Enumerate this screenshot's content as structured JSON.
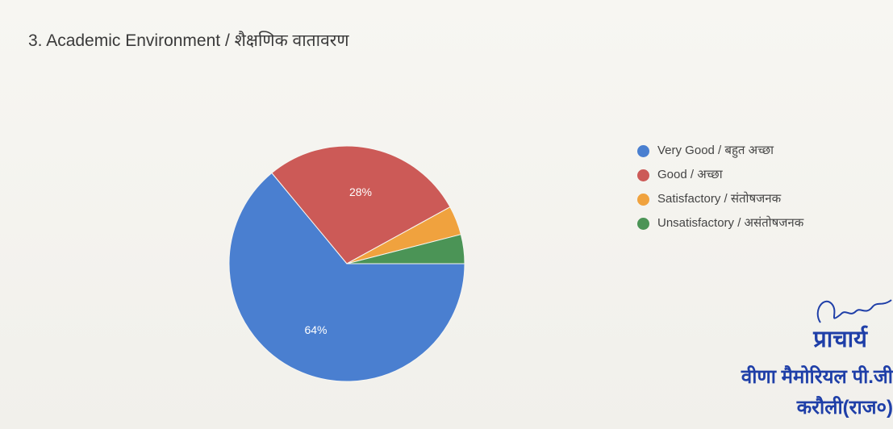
{
  "title": "3. Academic Environment / शैक्षणिक वातावरण",
  "chart_data": {
    "type": "pie",
    "title": "3. Academic Environment / शैक्षणिक वातावरण",
    "categories": [
      "Very Good / बहुत अच्छा",
      "Good / अच्छा",
      "Satisfactory / संतोषजनक",
      "Unsatisfactory / असंतोषजनक"
    ],
    "values": [
      64,
      28,
      4,
      4
    ],
    "data_labels": [
      "64%",
      "28%",
      "",
      ""
    ],
    "colors": [
      "#4a7fd0",
      "#cc5a57",
      "#f0a23e",
      "#4b9456"
    ],
    "legend_position": "right",
    "start_angle_deg": 0,
    "direction": "clockwise"
  },
  "stamp": {
    "title": "प्राचार्य",
    "line1": "वीणा मैमोरियल पी.जी",
    "line2": "करौली(राज०)",
    "color": "#1f3fa8"
  }
}
